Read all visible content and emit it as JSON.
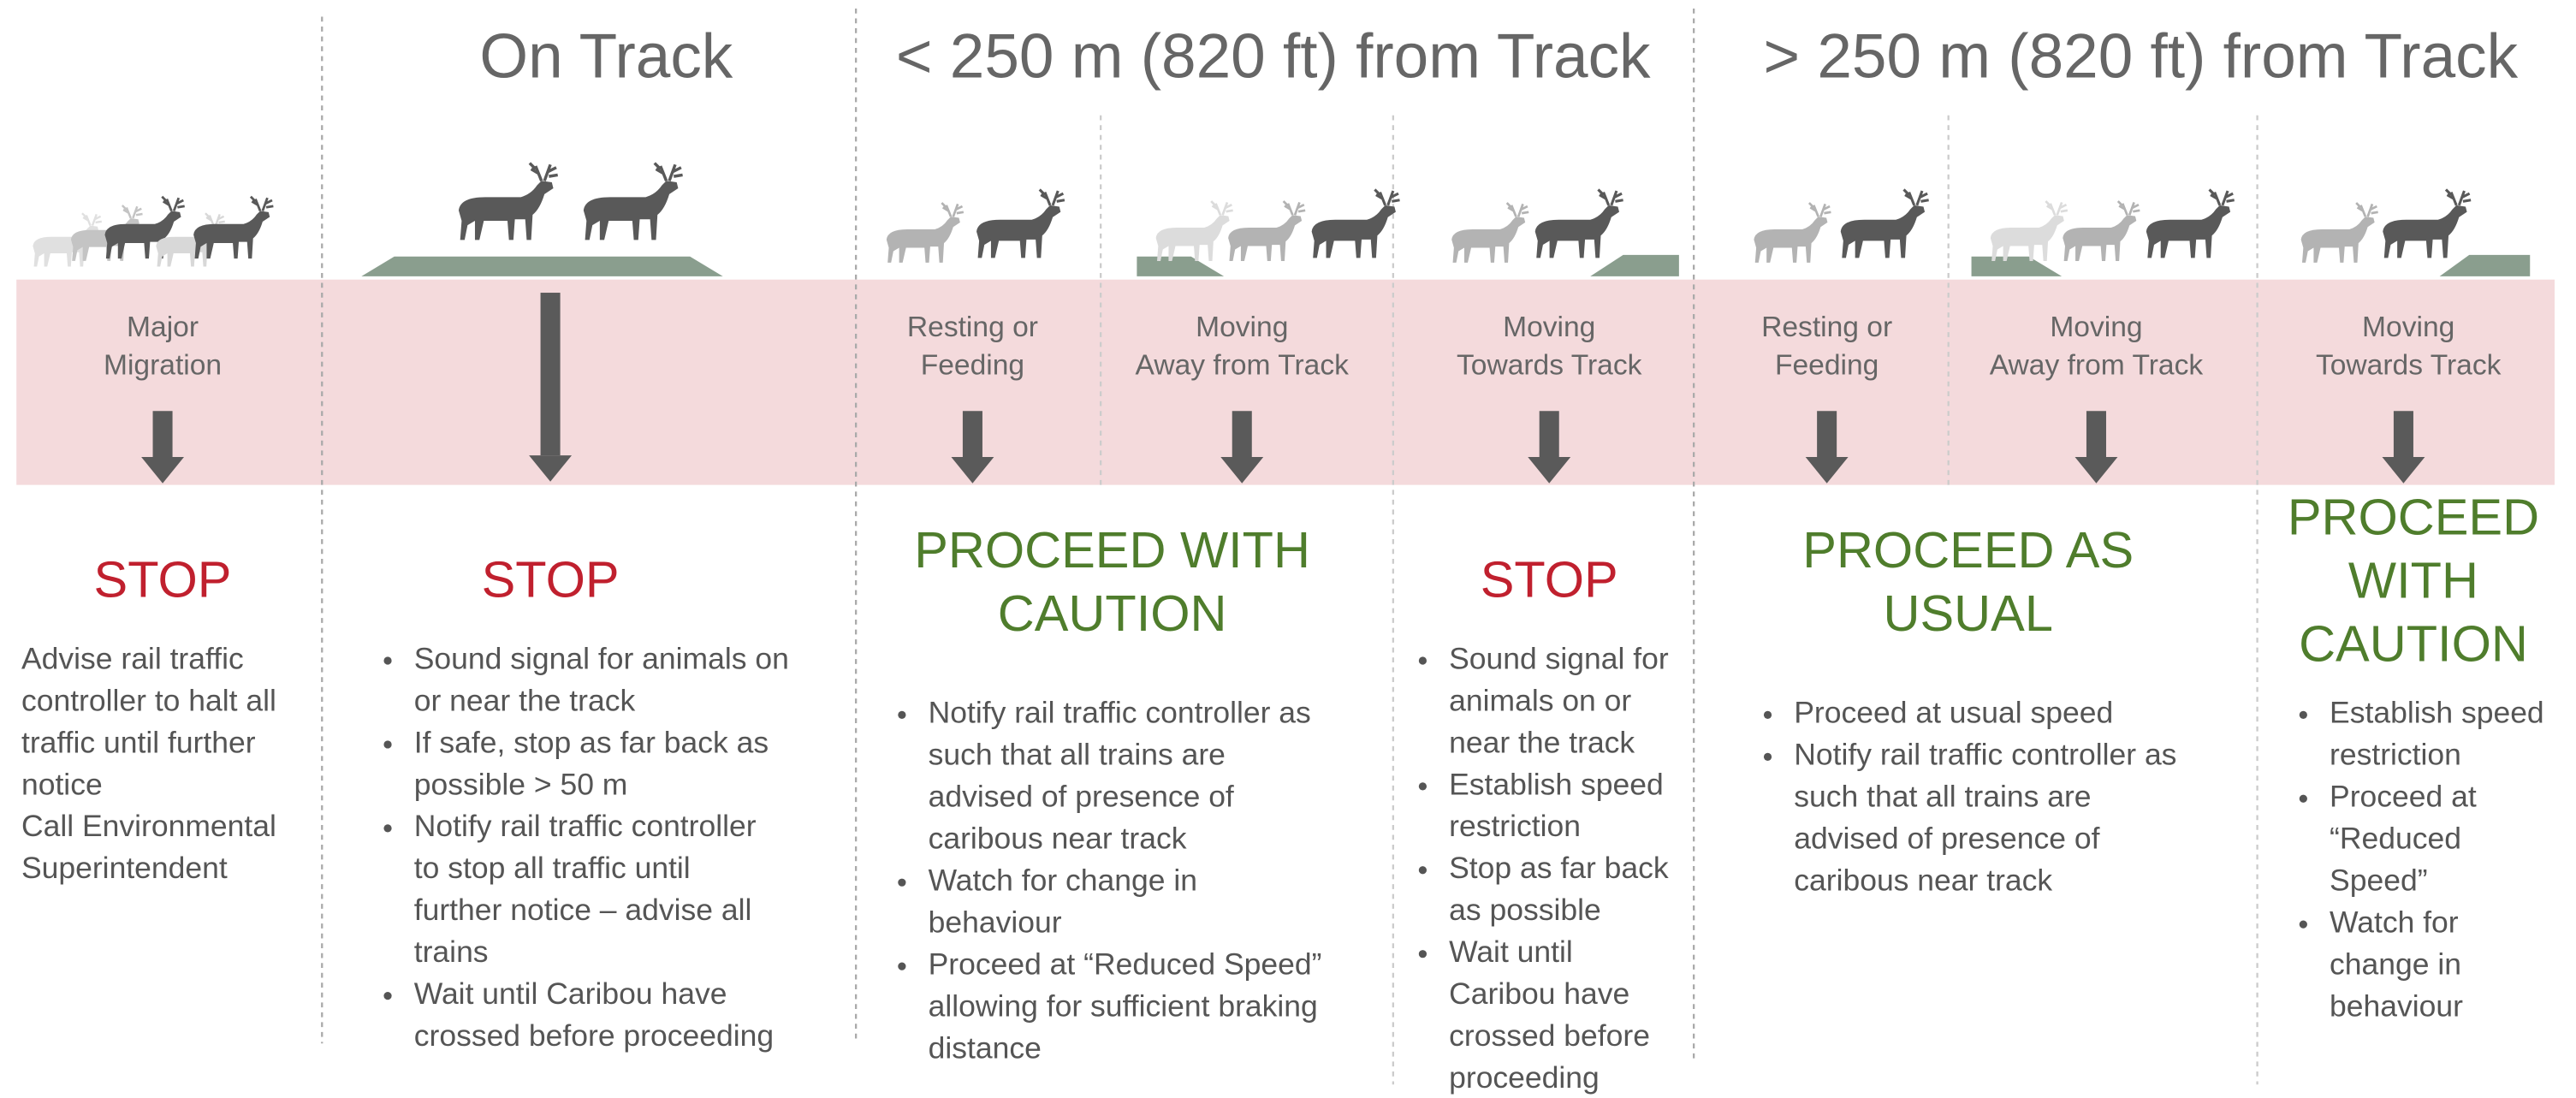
{
  "headers": [
    "On Track",
    "< 250 m (820 ft) from Track",
    "> 250 m (820 ft) from Track"
  ],
  "conditions": [
    [
      "Major",
      "Migration"
    ],
    [
      "Resting or",
      "Feeding"
    ],
    [
      "Moving",
      "Away from Track"
    ],
    [
      "Moving",
      "Towards Track"
    ],
    [
      "Resting or",
      "Feeding"
    ],
    [
      "Moving",
      "Away from Track"
    ],
    [
      "Moving",
      "Towards Track"
    ]
  ],
  "actions": [
    [
      "STOP"
    ],
    [
      "STOP"
    ],
    [
      "PROCEED WITH",
      "CAUTION"
    ],
    [
      "STOP"
    ],
    [
      "PROCEED AS",
      "USUAL"
    ],
    [
      "PROCEED",
      "WITH",
      "CAUTION"
    ]
  ],
  "guidance": [
    {
      "paragraphs": [
        [
          "Advise rail traffic",
          "controller to halt all",
          "traffic until further",
          "notice"
        ],
        [
          "Call Environmental",
          "Superintendent"
        ]
      ]
    },
    {
      "items": [
        [
          "Sound signal for animals on",
          "or near the track"
        ],
        [
          "If safe, stop as far back as",
          "possible > 50 m"
        ],
        [
          "Notify rail traffic controller",
          "to stop all traffic until",
          "further notice – advise all",
          "trains"
        ],
        [
          "Wait until Caribou have",
          "crossed before proceeding"
        ]
      ]
    },
    {
      "items": [
        [
          "Notify rail traffic controller as",
          "such that all trains are",
          "advised of presence of",
          "caribous near track"
        ],
        [
          "Watch for change in",
          "behaviour"
        ],
        [
          "Proceed at “Reduced Speed”",
          "allowing for sufficient braking",
          "distance"
        ]
      ]
    },
    {
      "items": [
        [
          "Sound signal for",
          "animals on or",
          "near the track"
        ],
        [
          "Establish speed",
          "restriction"
        ],
        [
          "Stop as far back",
          "as possible"
        ],
        [
          "Wait until",
          "Caribou have",
          "crossed before",
          "proceeding"
        ]
      ]
    },
    {
      "items": [
        [
          "Proceed at usual speed"
        ],
        [
          "Notify rail traffic controller as",
          "such that all trains are",
          "advised of presence of",
          "caribous near track"
        ]
      ]
    },
    {
      "items": [
        [
          "Establish speed",
          "restriction"
        ],
        [
          "Proceed at",
          "“Reduced",
          "Speed”"
        ],
        [
          "Watch for",
          "change in",
          "behaviour"
        ]
      ]
    }
  ]
}
